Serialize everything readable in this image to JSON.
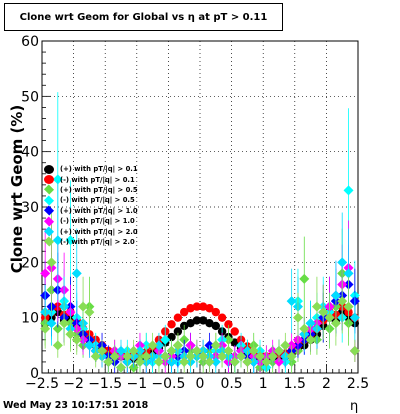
{
  "title": "Clone wrt Geom for Global vs   η at pT > 0.11",
  "timestamp": "Wed May 23 10:17:51 2018",
  "chart_data": {
    "type": "scatter",
    "title": "Clone wrt Geom for Global vs   η at pT > 0.11",
    "xlabel": "η",
    "ylabel": "Clone wrt Geom (%)",
    "xlim": [
      -2.5,
      2.5
    ],
    "ylim": [
      0,
      60
    ],
    "xticks": [
      -2.5,
      -2,
      -1.5,
      -1,
      -0.5,
      0,
      0.5,
      1,
      1.5,
      2,
      2.5
    ],
    "xtick_labels": [
      "−2.5",
      "−2",
      "−1.5",
      "−1",
      "−0.5",
      "0",
      "0.5",
      "1",
      "1.5",
      "2",
      "2.5"
    ],
    "yticks": [
      0,
      10,
      20,
      30,
      40,
      50,
      60
    ],
    "ytick_labels": [
      "0",
      "10",
      "20",
      "30",
      "40",
      "50",
      "60"
    ],
    "grid": true,
    "legend_position": "left-middle",
    "series": [
      {
        "name": "(+) with pT/|q| > 0.1",
        "color": "#000000",
        "marker": "circle",
        "x": [
          -2.45,
          -2.35,
          -2.25,
          -2.15,
          -2.05,
          -1.95,
          -1.85,
          -1.75,
          -1.65,
          -1.55,
          -1.45,
          -1.35,
          -1.25,
          -1.15,
          -1.05,
          -0.95,
          -0.85,
          -0.75,
          -0.65,
          -0.55,
          -0.45,
          -0.35,
          -0.25,
          -0.15,
          -0.05,
          0.05,
          0.15,
          0.25,
          0.35,
          0.45,
          0.55,
          0.65,
          0.75,
          0.85,
          0.95,
          1.05,
          1.15,
          1.25,
          1.35,
          1.45,
          1.55,
          1.65,
          1.75,
          1.85,
          1.95,
          2.05,
          2.15,
          2.25,
          2.35,
          2.45
        ],
        "y": [
          9,
          10,
          11,
          9.5,
          10,
          8.5,
          7,
          6,
          5,
          4.5,
          3.5,
          3,
          3,
          2.8,
          2.6,
          2.8,
          3,
          3.5,
          4.5,
          5.5,
          6.5,
          7.5,
          8.5,
          9,
          9.5,
          9.5,
          9,
          8.5,
          7.5,
          6.5,
          5.5,
          4.5,
          3.5,
          3,
          2.8,
          2.6,
          2.8,
          3,
          3,
          3.5,
          4.5,
          5,
          6,
          7,
          8.5,
          10,
          9.5,
          11,
          10,
          9
        ]
      },
      {
        "name": "(-) with pT/|q| > 0.1",
        "color": "#ff0000",
        "marker": "circle",
        "x": [
          -2.45,
          -2.35,
          -2.25,
          -2.15,
          -2.05,
          -1.95,
          -1.85,
          -1.75,
          -1.65,
          -1.55,
          -1.45,
          -1.35,
          -1.25,
          -1.15,
          -1.05,
          -0.95,
          -0.85,
          -0.75,
          -0.65,
          -0.55,
          -0.45,
          -0.35,
          -0.25,
          -0.15,
          -0.05,
          0.05,
          0.15,
          0.25,
          0.35,
          0.45,
          0.55,
          0.65,
          0.75,
          0.85,
          0.95,
          1.05,
          1.15,
          1.25,
          1.35,
          1.45,
          1.55,
          1.65,
          1.75,
          1.85,
          1.95,
          2.05,
          2.15,
          2.25,
          2.35,
          2.45
        ],
        "y": [
          10,
          11,
          12,
          10.5,
          11,
          9.5,
          8,
          7,
          6,
          5,
          4,
          3.5,
          3.4,
          3.2,
          3,
          3.3,
          3.8,
          4.8,
          6,
          7.5,
          8.8,
          10,
          11,
          11.7,
          12,
          12,
          11.7,
          11,
          10,
          8.8,
          7.5,
          6,
          4.8,
          3.8,
          3.3,
          3,
          3.2,
          3.4,
          3.5,
          4,
          5,
          6,
          7,
          8,
          9.5,
          11,
          10.5,
          12,
          11,
          10
        ]
      },
      {
        "name": "(+) with pT/|q| > 0.5",
        "color": "#66dd44",
        "marker": "diamond",
        "x": [
          -2.45,
          -2.35,
          -2.25,
          -2.15,
          -2.05,
          -1.95,
          -1.85,
          -1.75,
          -1.65,
          -1.55,
          -1.45,
          -1.35,
          -1.25,
          -1.15,
          -1.05,
          -0.95,
          -0.85,
          -0.75,
          -0.65,
          -0.55,
          -0.45,
          -0.35,
          -0.25,
          -0.15,
          -0.05,
          0.05,
          0.15,
          0.25,
          0.35,
          0.45,
          0.55,
          0.65,
          0.75,
          0.85,
          0.95,
          1.05,
          1.15,
          1.25,
          1.35,
          1.45,
          1.55,
          1.65,
          1.75,
          1.85,
          1.95,
          2.05,
          2.15,
          2.25,
          2.35,
          2.45
        ],
        "y": [
          9,
          15,
          8,
          12,
          9,
          7,
          5,
          12,
          4,
          3,
          2,
          4,
          3,
          2,
          1,
          3,
          5,
          2,
          4,
          3,
          2,
          5,
          6,
          4,
          3,
          2,
          4,
          5,
          3,
          6,
          2,
          3,
          4,
          5,
          1,
          3,
          2,
          4,
          3,
          2,
          4,
          17,
          9,
          6,
          10,
          8,
          12,
          18,
          9,
          4
        ]
      },
      {
        "name": "(-) with pT/|q| > 0.5",
        "color": "#00ffff",
        "marker": "diamond",
        "x": [
          -2.45,
          -2.35,
          -2.25,
          -2.15,
          -2.05,
          -1.95,
          -1.85,
          -1.75,
          -1.65,
          -1.55,
          -1.45,
          -1.35,
          -1.25,
          -1.15,
          -1.05,
          -0.95,
          -0.85,
          -0.75,
          -0.65,
          -0.55,
          -0.45,
          -0.35,
          -0.25,
          -0.15,
          -0.05,
          0.05,
          0.15,
          0.25,
          0.35,
          0.45,
          0.55,
          0.65,
          0.75,
          0.85,
          0.95,
          1.05,
          1.15,
          1.25,
          1.35,
          1.45,
          1.55,
          1.65,
          1.75,
          1.85,
          1.95,
          2.05,
          2.15,
          2.25,
          2.35,
          2.45
        ],
        "y": [
          14,
          11,
          35,
          13,
          24,
          10,
          8,
          6,
          5,
          4,
          2,
          3,
          1,
          4,
          3,
          2,
          5,
          2,
          3,
          6,
          4,
          2,
          3,
          5,
          4,
          3,
          2,
          4,
          6,
          3,
          2,
          5,
          3,
          2,
          4,
          1,
          3,
          4,
          2,
          3,
          13,
          6,
          9,
          10,
          12,
          11,
          13,
          10,
          33,
          14
        ]
      },
      {
        "name": "(+) with pT/|q| > 1.0",
        "color": "#0000ff",
        "marker": "diamond",
        "x": [
          -2.45,
          -2.35,
          -2.25,
          -2.15,
          -2.05,
          -1.95,
          -1.85,
          -1.75,
          -1.65,
          -1.55,
          -1.45,
          -1.35,
          -1.25,
          -1.15,
          -1.05,
          -0.95,
          -0.85,
          -0.75,
          -0.65,
          -0.55,
          -0.45,
          -0.35,
          -0.25,
          -0.15,
          -0.05,
          0.05,
          0.15,
          0.25,
          0.35,
          0.45,
          0.55,
          0.65,
          0.75,
          0.85,
          0.95,
          1.05,
          1.15,
          1.25,
          1.35,
          1.45,
          1.55,
          1.65,
          1.75,
          1.85,
          1.95,
          2.05,
          2.15,
          2.25,
          2.35,
          2.45
        ],
        "y": [
          14,
          12,
          15,
          10,
          12,
          9,
          7,
          6,
          4,
          5,
          3,
          2,
          3,
          2,
          3,
          4,
          2,
          3,
          4,
          3,
          2,
          3,
          4,
          5,
          3,
          4,
          5,
          3,
          4,
          2,
          3,
          4,
          3,
          2,
          3,
          2,
          3,
          4,
          3,
          4,
          5,
          6,
          7,
          8,
          10,
          12,
          13,
          14,
          16,
          13
        ]
      },
      {
        "name": "(-) with pT/|q| > 1.0",
        "color": "#ff00ff",
        "marker": "diamond",
        "x": [
          -2.45,
          -2.35,
          -2.25,
          -2.15,
          -2.05,
          -1.95,
          -1.85,
          -1.75,
          -1.65,
          -1.55,
          -1.45,
          -1.35,
          -1.25,
          -1.15,
          -1.05,
          -0.95,
          -0.85,
          -0.75,
          -0.65,
          -0.55,
          -0.45,
          -0.35,
          -0.25,
          -0.15,
          -0.05,
          0.05,
          0.15,
          0.25,
          0.35,
          0.45,
          0.55,
          0.65,
          0.75,
          0.85,
          0.95,
          1.05,
          1.15,
          1.25,
          1.35,
          1.45,
          1.55,
          1.65,
          1.75,
          1.85,
          1.95,
          2.05,
          2.15,
          2.25,
          2.35,
          2.45
        ],
        "y": [
          18,
          19,
          17,
          15,
          11,
          8,
          6,
          5,
          4,
          3,
          2,
          4,
          3,
          2,
          3,
          5,
          2,
          3,
          4,
          2,
          3,
          4,
          3,
          5,
          4,
          3,
          2,
          3,
          5,
          2,
          3,
          4,
          2,
          3,
          2,
          3,
          4,
          2,
          3,
          5,
          6,
          7,
          8,
          9,
          11,
          12,
          14,
          16,
          19,
          4
        ]
      },
      {
        "name": "(+) with pT/|q| > 2.0",
        "color": "#00ddff",
        "marker": "diamond",
        "x": [
          -2.45,
          -2.35,
          -2.25,
          -2.15,
          -2.05,
          -1.95,
          -1.85,
          -1.75,
          -1.65,
          -1.55,
          -1.45,
          -1.35,
          -1.25,
          -1.15,
          -1.05,
          -0.95,
          -0.85,
          -0.75,
          -0.65,
          -0.55,
          -0.45,
          -0.35,
          -0.25,
          -0.15,
          -0.05,
          0.05,
          0.15,
          0.25,
          0.35,
          0.45,
          0.55,
          0.65,
          0.75,
          0.85,
          0.95,
          1.05,
          1.15,
          1.25,
          1.35,
          1.45,
          1.55,
          1.65,
          1.75,
          1.85,
          1.95,
          2.05,
          2.15,
          2.25,
          2.35,
          2.45
        ],
        "y": [
          11,
          9,
          24,
          12,
          8,
          18,
          9,
          5,
          4,
          3,
          2,
          3,
          4,
          2,
          3,
          4,
          2,
          3,
          5,
          3,
          2,
          4,
          3,
          2,
          3,
          4,
          3,
          2,
          4,
          3,
          2,
          3,
          4,
          2,
          3,
          2,
          3,
          4,
          3,
          13,
          12,
          7,
          9,
          8,
          11,
          10,
          14,
          20,
          18,
          10
        ]
      },
      {
        "name": "(-) with pT/|q| > 2.0",
        "color": "#88dd55",
        "marker": "diamond",
        "x": [
          -2.45,
          -2.35,
          -2.25,
          -2.15,
          -2.05,
          -1.95,
          -1.85,
          -1.75,
          -1.65,
          -1.55,
          -1.45,
          -1.35,
          -1.25,
          -1.15,
          -1.05,
          -0.95,
          -0.85,
          -0.75,
          -0.65,
          -0.55,
          -0.45,
          -0.35,
          -0.25,
          -0.15,
          -0.05,
          0.05,
          0.15,
          0.25,
          0.35,
          0.45,
          0.55,
          0.65,
          0.75,
          0.85,
          0.95,
          1.05,
          1.15,
          1.25,
          1.35,
          1.45,
          1.55,
          1.65,
          1.75,
          1.85,
          1.95,
          2.05,
          2.15,
          2.25,
          2.35,
          2.45
        ],
        "y": [
          8,
          20,
          5,
          9,
          7,
          6,
          12,
          11,
          3,
          4,
          2,
          3,
          1,
          3,
          4,
          2,
          3,
          5,
          2,
          3,
          4,
          5,
          2,
          3,
          4,
          3,
          2,
          5,
          3,
          4,
          2,
          3,
          2,
          4,
          3,
          2,
          3,
          4,
          5,
          3,
          10,
          8,
          6,
          12,
          11,
          10,
          9,
          13,
          12,
          4
        ]
      }
    ]
  }
}
